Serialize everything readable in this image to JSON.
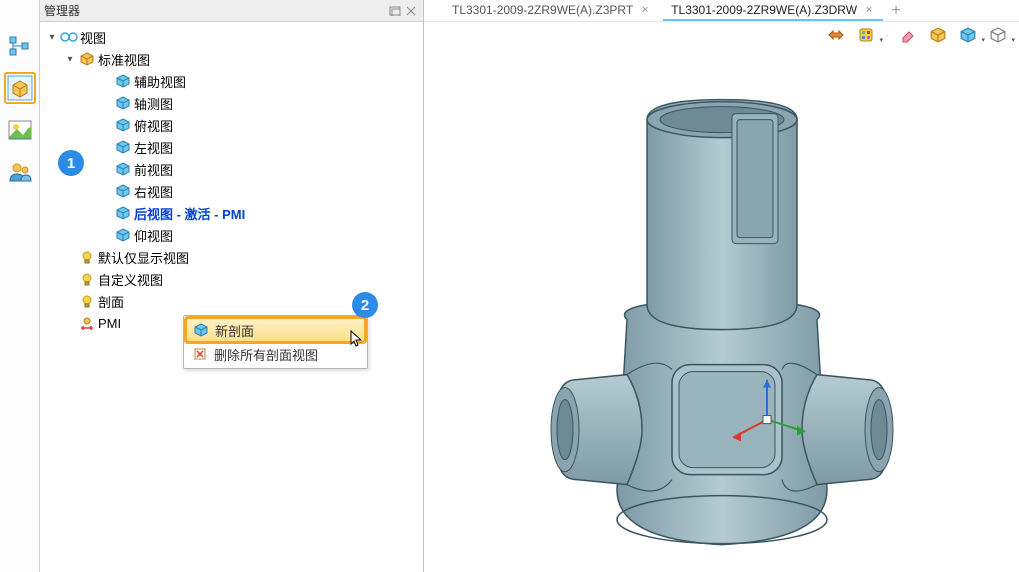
{
  "panel": {
    "title": "管理器",
    "collapse_icon": "⧉",
    "close_icon": "✕"
  },
  "left_toolbar": {
    "items": [
      {
        "name": "model-tree-tab",
        "selected": false
      },
      {
        "name": "part-tab",
        "selected": true
      },
      {
        "name": "image-tab",
        "selected": false
      },
      {
        "name": "user-tab",
        "selected": false
      }
    ]
  },
  "tree": {
    "root": {
      "label": "视图",
      "icon": "glasses"
    },
    "std_views": {
      "label": "标准视图",
      "items": [
        {
          "label": "辅助视图",
          "special": false
        },
        {
          "label": "轴测图",
          "special": false
        },
        {
          "label": "俯视图",
          "special": false
        },
        {
          "label": "左视图",
          "special": false
        },
        {
          "label": "前视图",
          "special": false
        },
        {
          "label": "右视图",
          "special": false
        },
        {
          "label": "后视图 - 激活 - PMI",
          "special": true
        },
        {
          "label": "仰视图",
          "special": false
        }
      ]
    },
    "other": [
      {
        "label": "默认仅显示视图",
        "icon": "bulb"
      },
      {
        "label": "自定义视图",
        "icon": "bulb"
      },
      {
        "label": "剖面",
        "icon": "bulb"
      },
      {
        "label": "PMI",
        "icon": "pmi"
      }
    ]
  },
  "context_menu": {
    "items": [
      {
        "label": "新剖面",
        "highlight": true,
        "icon": "cube"
      },
      {
        "label": "删除所有剖面视图",
        "highlight": false,
        "icon": "delete"
      }
    ]
  },
  "badges": {
    "one": "1",
    "two": "2"
  },
  "tabs": {
    "items": [
      {
        "label": "TL3301-2009-2ZR9WE(A).Z3PRT",
        "active": false
      },
      {
        "label": "TL3301-2009-2ZR9WE(A).Z3DRW",
        "active": true
      }
    ]
  },
  "model": {
    "body_color": "#9ab4bd",
    "edge_color": "#3a5560",
    "highlight_color": "#c2d4da",
    "axis_x": "#d83a2b",
    "axis_y": "#2aa13c",
    "axis_z": "#2a6fd6"
  },
  "viewport_toolbar": {
    "items": [
      {
        "name": "nav-icon"
      },
      {
        "name": "material-icon"
      },
      {
        "name": "eraser-icon"
      },
      {
        "name": "small-cube-icon"
      },
      {
        "name": "shaded-cube-icon"
      },
      {
        "name": "wire-cube-icon"
      }
    ]
  }
}
